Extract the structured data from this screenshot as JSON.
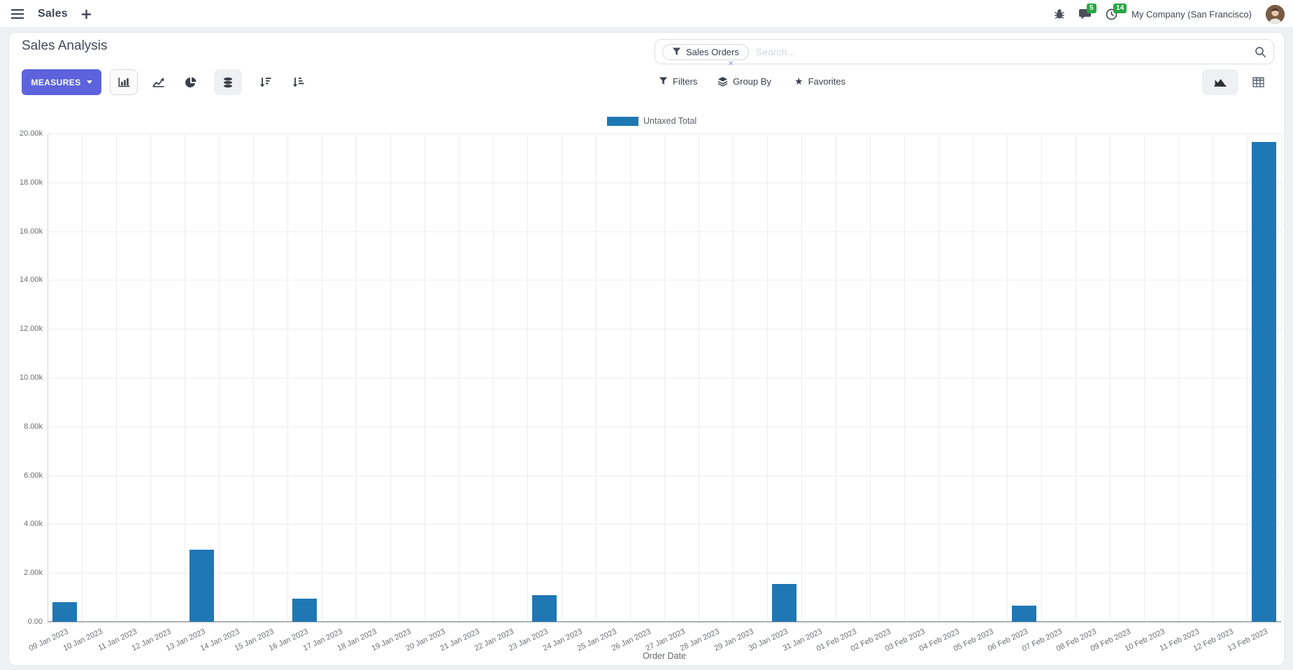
{
  "navbar": {
    "app_name": "Sales",
    "company": "My Company (San Francisco)",
    "badges": {
      "messages": "5",
      "activities": "14"
    }
  },
  "panel": {
    "title": "Sales Analysis",
    "measures_label": "MEASURES",
    "search": {
      "facet_label": "Sales Orders",
      "close_glyph": "✕",
      "placeholder": "Search..."
    },
    "filters_label": "Filters",
    "group_by_label": "Group By",
    "favorites_label": "Favorites",
    "favorites_star": "★"
  },
  "chart_data": {
    "type": "bar",
    "title": "",
    "legend_position": "top",
    "grid": true,
    "xlabel": "Order Date",
    "ylabel": "",
    "ylim": [
      0,
      20000
    ],
    "ytick_step": 2000,
    "ytick_labels": [
      "0.00",
      "2.00k",
      "4.00k",
      "6.00k",
      "8.00k",
      "10.00k",
      "12.00k",
      "14.00k",
      "16.00k",
      "18.00k",
      "20.00k"
    ],
    "bar_color": "#1f77b4",
    "categories": [
      "09 Jan 2023",
      "10 Jan 2023",
      "11 Jan 2023",
      "12 Jan 2023",
      "13 Jan 2023",
      "14 Jan 2023",
      "15 Jan 2023",
      "16 Jan 2023",
      "17 Jan 2023",
      "18 Jan 2023",
      "19 Jan 2023",
      "20 Jan 2023",
      "21 Jan 2023",
      "22 Jan 2023",
      "23 Jan 2023",
      "24 Jan 2023",
      "25 Jan 2023",
      "26 Jan 2023",
      "27 Jan 2023",
      "28 Jan 2023",
      "29 Jan 2023",
      "30 Jan 2023",
      "31 Jan 2023",
      "01 Feb 2023",
      "02 Feb 2023",
      "03 Feb 2023",
      "04 Feb 2023",
      "05 Feb 2023",
      "06 Feb 2023",
      "07 Feb 2023",
      "08 Feb 2023",
      "09 Feb 2023",
      "10 Feb 2023",
      "11 Feb 2023",
      "12 Feb 2023",
      "13 Feb 2023"
    ],
    "series": [
      {
        "name": "Untaxed Total",
        "values": [
          800,
          0,
          0,
          0,
          2950,
          0,
          0,
          950,
          0,
          0,
          0,
          0,
          0,
          0,
          1080,
          0,
          0,
          0,
          0,
          0,
          0,
          1550,
          0,
          0,
          0,
          0,
          0,
          0,
          660,
          0,
          0,
          0,
          0,
          0,
          0,
          19650
        ]
      }
    ]
  }
}
